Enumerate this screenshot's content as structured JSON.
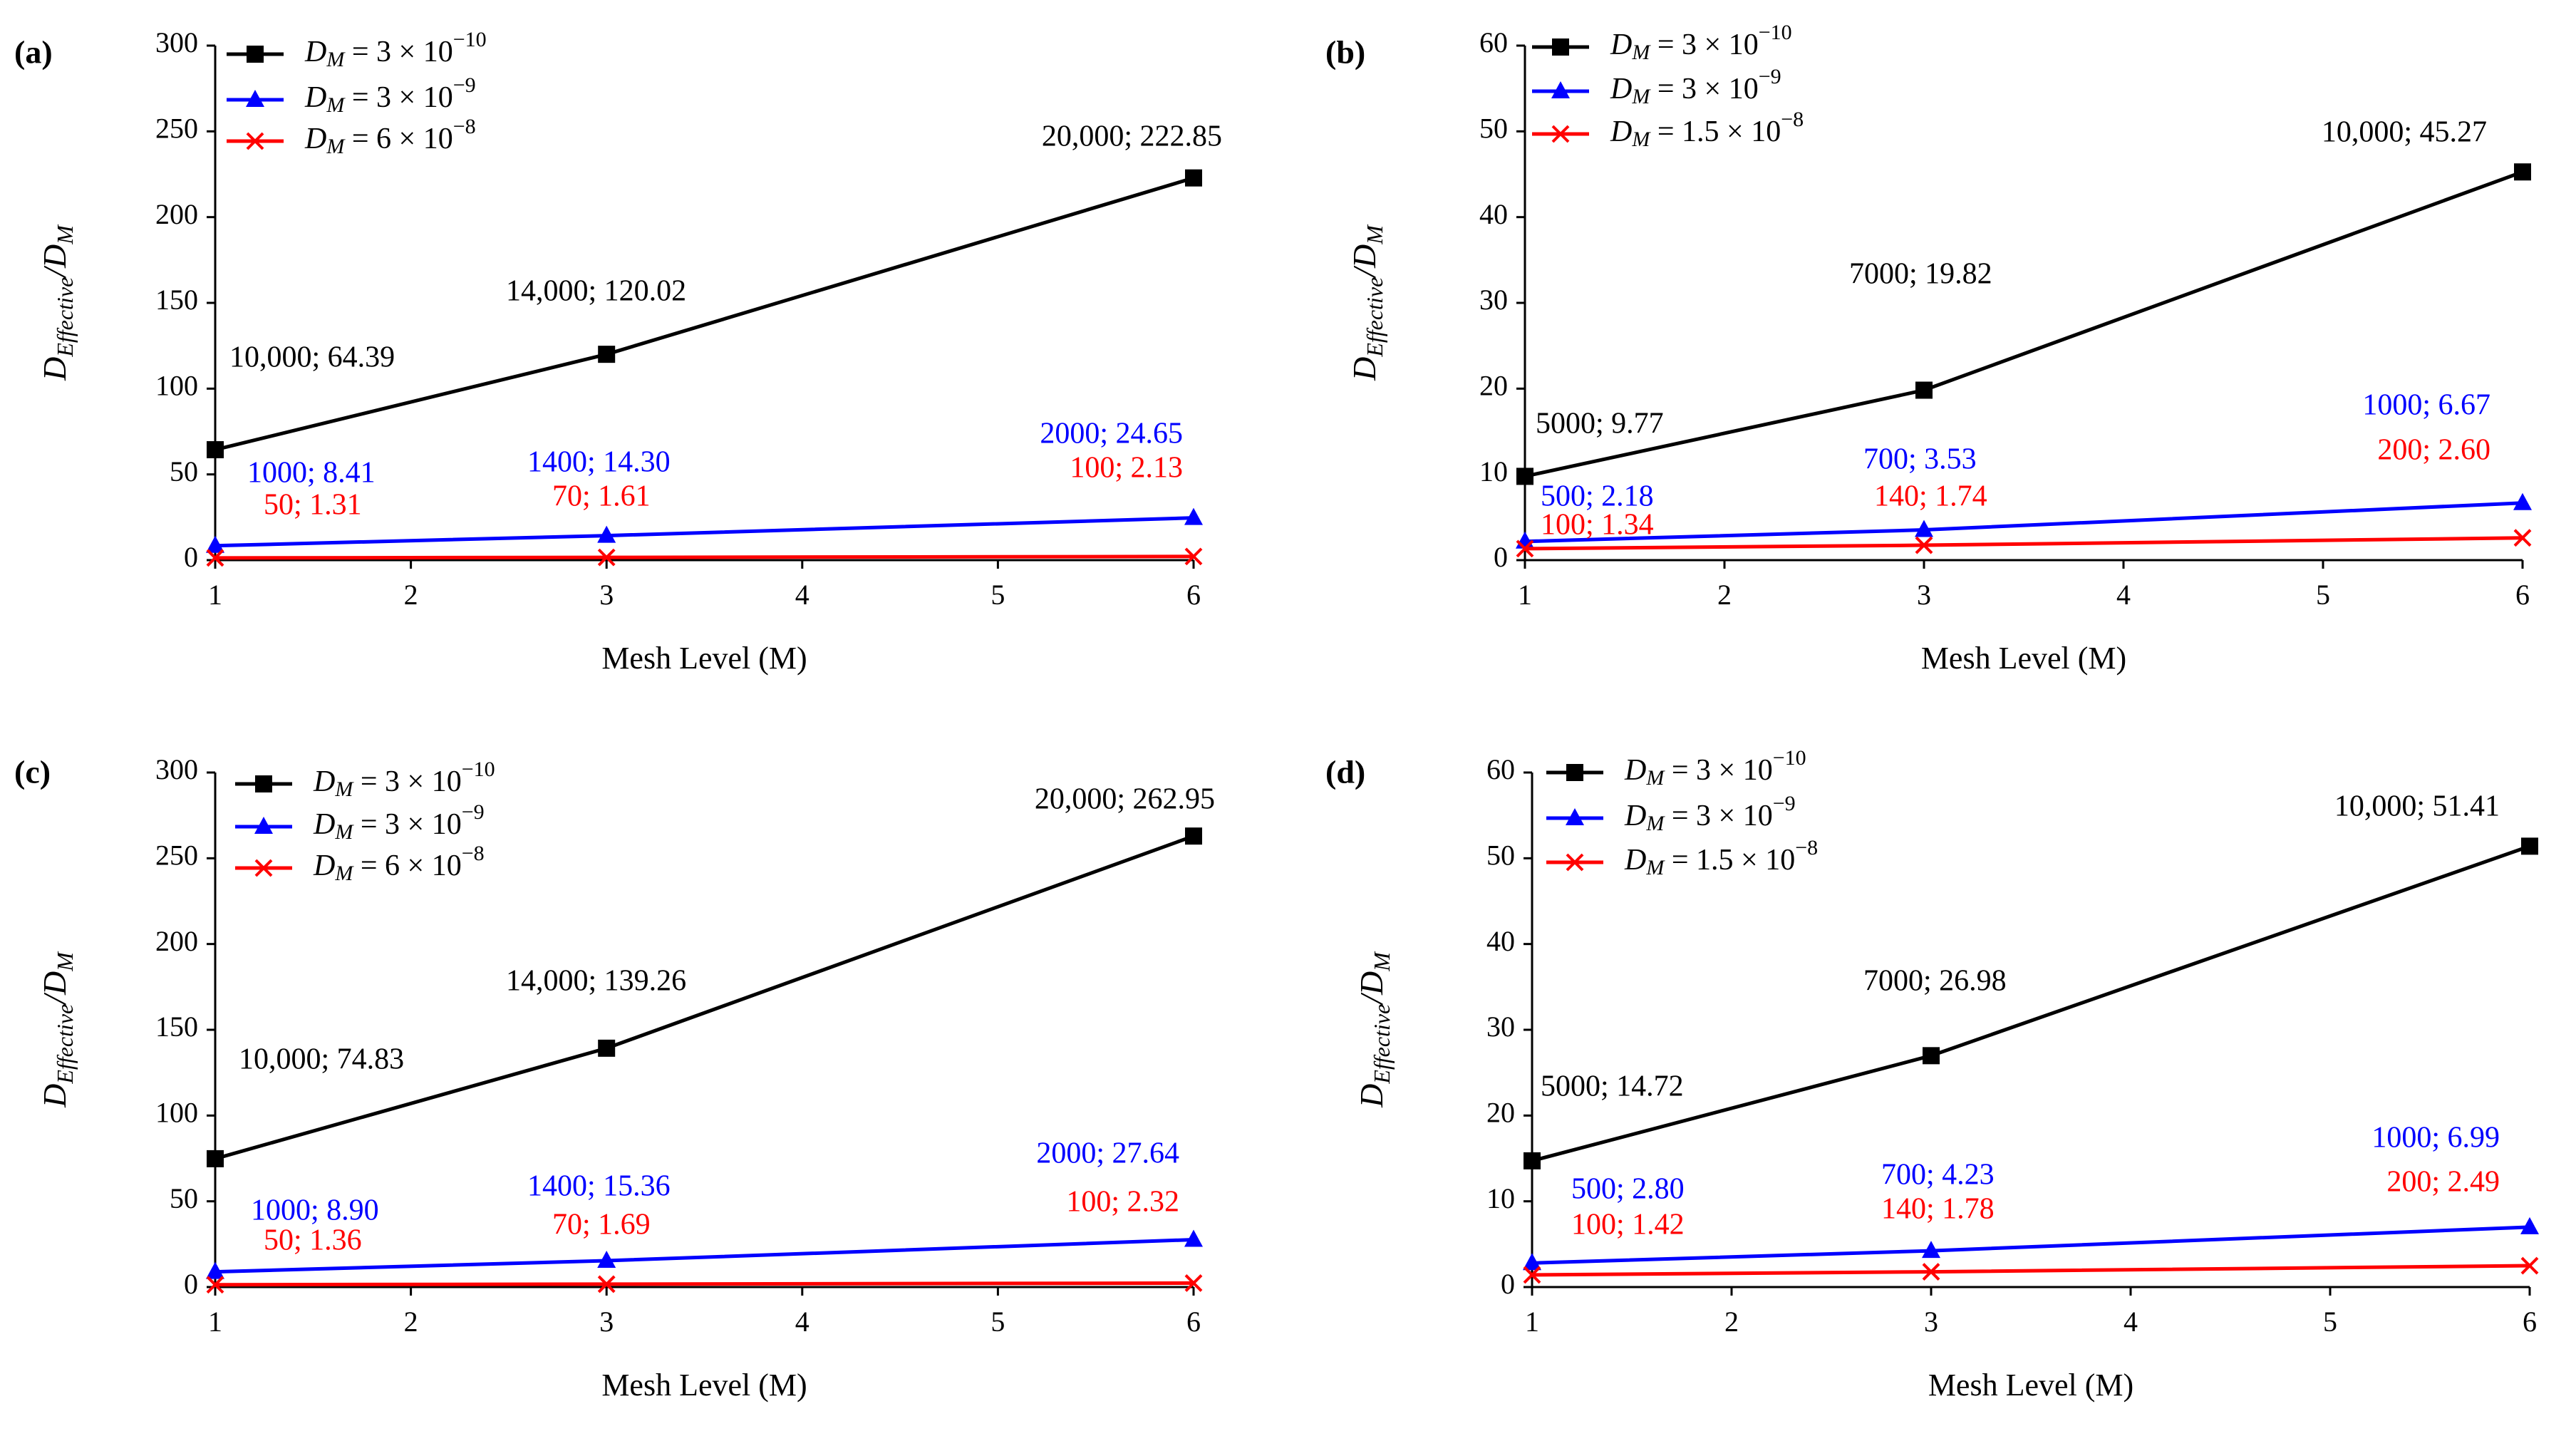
{
  "chart_data": [
    {
      "type": "line",
      "panel_label": "(a)",
      "xlabel": "Mesh Level (M)",
      "ylabel": "D_Effective/D_M",
      "x_ticks": [
        1,
        2,
        3,
        4,
        5,
        6
      ],
      "ylim": [
        0,
        300
      ],
      "y_ticks": [
        0,
        50,
        100,
        150,
        200,
        250,
        300
      ],
      "legend_position": "top-left",
      "series": [
        {
          "name": "D_M = 3 × 10^-10",
          "mantissa": "3",
          "exponent": "−10",
          "color": "#000000",
          "marker": "square",
          "x": [
            1,
            3,
            6
          ],
          "values": [
            64.39,
            120.02,
            222.85
          ],
          "labels": [
            "10,000; 64.39",
            "14,000; 120.02",
            "20,000; 222.85"
          ]
        },
        {
          "name": "D_M = 3 × 10^-9",
          "mantissa": "3",
          "exponent": "−9",
          "color": "#0000ff",
          "marker": "triangle",
          "x": [
            1,
            3,
            6
          ],
          "values": [
            8.41,
            14.3,
            24.65
          ],
          "labels": [
            "1000; 8.41",
            "1400; 14.30",
            "2000; 24.65"
          ]
        },
        {
          "name": "D_M = 6 × 10^-8",
          "mantissa": "6",
          "exponent": "−8",
          "color": "#ff0000",
          "marker": "x",
          "x": [
            1,
            3,
            6
          ],
          "values": [
            1.31,
            1.61,
            2.13
          ],
          "labels": [
            "50; 1.31",
            "70; 1.61",
            "100; 2.13"
          ]
        }
      ]
    },
    {
      "type": "line",
      "panel_label": "(b)",
      "xlabel": "Mesh Level (M)",
      "ylabel": "D_Effective/D_M",
      "x_ticks": [
        1,
        2,
        3,
        4,
        5,
        6
      ],
      "ylim": [
        0,
        60
      ],
      "y_ticks": [
        0,
        10,
        20,
        30,
        40,
        50,
        60
      ],
      "legend_position": "top-left",
      "series": [
        {
          "name": "D_M = 3 × 10^-10",
          "mantissa": "3",
          "exponent": "−10",
          "color": "#000000",
          "marker": "square",
          "x": [
            1,
            3,
            6
          ],
          "values": [
            9.77,
            19.82,
            45.27
          ],
          "labels": [
            "5000; 9.77",
            "7000; 19.82",
            "10,000; 45.27"
          ]
        },
        {
          "name": "D_M = 3 × 10^-9",
          "mantissa": "3",
          "exponent": "−9",
          "color": "#0000ff",
          "marker": "triangle",
          "x": [
            1,
            3,
            6
          ],
          "values": [
            2.18,
            3.53,
            6.67
          ],
          "labels": [
            "500; 2.18",
            "700; 3.53",
            "1000; 6.67"
          ]
        },
        {
          "name": "D_M = 1.5 × 10^-8",
          "mantissa": "1.5",
          "exponent": "−8",
          "color": "#ff0000",
          "marker": "x",
          "x": [
            1,
            3,
            6
          ],
          "values": [
            1.34,
            1.74,
            2.6
          ],
          "labels": [
            "100; 1.34",
            "140; 1.74",
            "200; 2.60"
          ]
        }
      ]
    },
    {
      "type": "line",
      "panel_label": "(c)",
      "xlabel": "Mesh Level (M)",
      "ylabel": "D_Effective/D_M",
      "x_ticks": [
        1,
        2,
        3,
        4,
        5,
        6
      ],
      "ylim": [
        0,
        300
      ],
      "y_ticks": [
        0,
        50,
        100,
        150,
        200,
        250,
        300
      ],
      "legend_position": "top-left",
      "series": [
        {
          "name": "D_M = 3 × 10^-10",
          "mantissa": "3",
          "exponent": "−10",
          "color": "#000000",
          "marker": "square",
          "x": [
            1,
            3,
            6
          ],
          "values": [
            74.83,
            139.26,
            262.95
          ],
          "labels": [
            "10,000; 74.83",
            "14,000; 139.26",
            "20,000; 262.95"
          ]
        },
        {
          "name": "D_M = 3 × 10^-9",
          "mantissa": "3",
          "exponent": "−9",
          "color": "#0000ff",
          "marker": "triangle",
          "x": [
            1,
            3,
            6
          ],
          "values": [
            8.9,
            15.36,
            27.64
          ],
          "labels": [
            "1000; 8.90",
            "1400; 15.36",
            "2000; 27.64"
          ]
        },
        {
          "name": "D_M = 6 × 10^-8",
          "mantissa": "6",
          "exponent": "−8",
          "color": "#ff0000",
          "marker": "x",
          "x": [
            1,
            3,
            6
          ],
          "values": [
            1.36,
            1.69,
            2.32
          ],
          "labels": [
            "50; 1.36",
            "70; 1.69",
            "100; 2.32"
          ]
        }
      ]
    },
    {
      "type": "line",
      "panel_label": "(d)",
      "xlabel": "Mesh Level (M)",
      "ylabel": "D_Effective/D_M",
      "x_ticks": [
        1,
        2,
        3,
        4,
        5,
        6
      ],
      "ylim": [
        0,
        60
      ],
      "y_ticks": [
        0,
        10,
        20,
        30,
        40,
        50,
        60
      ],
      "legend_position": "top-left",
      "series": [
        {
          "name": "D_M = 3 × 10^-10",
          "mantissa": "3",
          "exponent": "−10",
          "color": "#000000",
          "marker": "square",
          "x": [
            1,
            3,
            6
          ],
          "values": [
            14.72,
            26.98,
            51.41
          ],
          "labels": [
            "5000; 14.72",
            "7000; 26.98",
            "10,000; 51.41"
          ]
        },
        {
          "name": "D_M = 3 × 10^-9",
          "mantissa": "3",
          "exponent": "−9",
          "color": "#0000ff",
          "marker": "triangle",
          "x": [
            1,
            3,
            6
          ],
          "values": [
            2.8,
            4.23,
            6.99
          ],
          "labels": [
            "500; 2.80",
            "700; 4.23",
            "1000; 6.99"
          ]
        },
        {
          "name": "D_M = 1.5 × 10^-8",
          "mantissa": "1.5",
          "exponent": "−8",
          "color": "#ff0000",
          "marker": "x",
          "x": [
            1,
            3,
            6
          ],
          "values": [
            1.42,
            1.78,
            2.49
          ],
          "labels": [
            "100; 1.42",
            "140; 1.78",
            "200; 2.49"
          ]
        }
      ]
    }
  ]
}
